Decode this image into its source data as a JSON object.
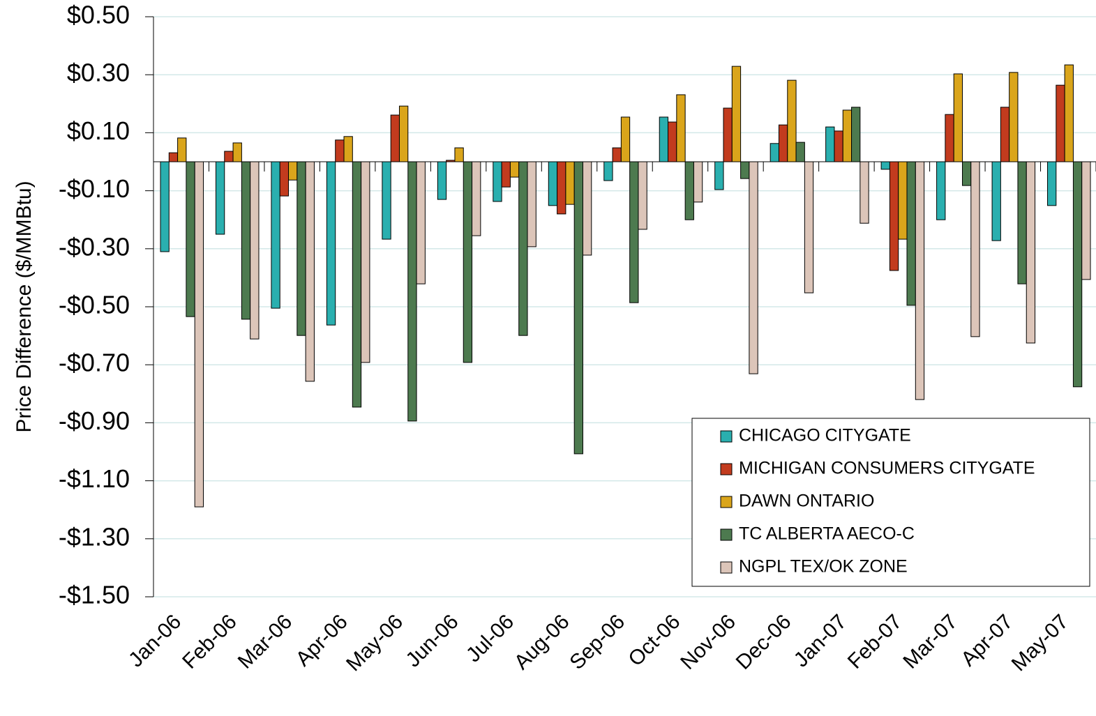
{
  "chart_data": {
    "type": "bar",
    "y_label": "Price Difference ($/MMBtu)",
    "categories": [
      "Jan-06",
      "Feb-06",
      "Mar-06",
      "Apr-06",
      "May-06",
      "Jun-06",
      "Jul-06",
      "Aug-06",
      "Sep-06",
      "Oct-06",
      "Nov-06",
      "Dec-06",
      "Jan-07",
      "Feb-07",
      "Mar-07",
      "Apr-07",
      "May-07"
    ],
    "series": [
      {
        "name": "CHICAGO CITYGATE",
        "color": "#2aafaf",
        "values": [
          -0.31,
          -0.25,
          -0.505,
          -0.563,
          -0.267,
          -0.13,
          -0.137,
          -0.151,
          -0.065,
          0.154,
          -0.096,
          0.063,
          0.12,
          -0.026,
          -0.2,
          -0.272,
          -0.151
        ]
      },
      {
        "name": "MICHIGAN CONSUMERS CITYGATE",
        "color": "#c23b1e",
        "values": [
          0.031,
          0.036,
          -0.118,
          0.075,
          0.161,
          0.005,
          -0.087,
          -0.18,
          0.048,
          0.137,
          0.185,
          0.127,
          0.106,
          -0.375,
          0.163,
          0.188,
          0.264
        ]
      },
      {
        "name": "DAWN ONTARIO",
        "color": "#daa51b",
        "values": [
          0.082,
          0.065,
          -0.063,
          0.087,
          0.192,
          0.048,
          -0.053,
          -0.147,
          0.154,
          0.231,
          0.329,
          0.281,
          0.178,
          -0.267,
          0.303,
          0.308,
          0.334
        ]
      },
      {
        "name": "TC ALBERTA AECO-C",
        "color": "#4d7a4f",
        "values": [
          -0.534,
          -0.543,
          -0.599,
          -0.846,
          -0.894,
          -0.692,
          -0.599,
          -1.007,
          -0.486,
          -0.2,
          -0.058,
          0.067,
          0.188,
          -0.495,
          -0.082,
          -0.421,
          -0.776
        ]
      },
      {
        "name": "NGPL TEX/OK ZONE",
        "color": "#dcc5b9",
        "values": [
          -1.19,
          -0.611,
          -0.757,
          -0.692,
          -0.421,
          -0.255,
          -0.293,
          -0.322,
          -0.233,
          -0.139,
          -0.731,
          -0.452,
          -0.212,
          -0.82,
          -0.603,
          -0.625,
          -0.406
        ]
      }
    ],
    "ylim": [
      -1.5,
      0.5
    ],
    "yticks": [
      {
        "value": 0.5,
        "label": "$0.50"
      },
      {
        "value": 0.3,
        "label": "$0.30"
      },
      {
        "value": 0.1,
        "label": "$0.10"
      },
      {
        "value": -0.1,
        "label": "-$0.10"
      },
      {
        "value": -0.3,
        "label": "-$0.30"
      },
      {
        "value": -0.5,
        "label": "-$0.50"
      },
      {
        "value": -0.7,
        "label": "-$0.70"
      },
      {
        "value": -0.9,
        "label": "-$0.90"
      },
      {
        "value": -1.1,
        "label": "-$1.10"
      },
      {
        "value": -1.3,
        "label": "-$1.30"
      },
      {
        "value": -1.5,
        "label": "-$1.50"
      }
    ],
    "grid": true,
    "legend": "lower-right"
  }
}
